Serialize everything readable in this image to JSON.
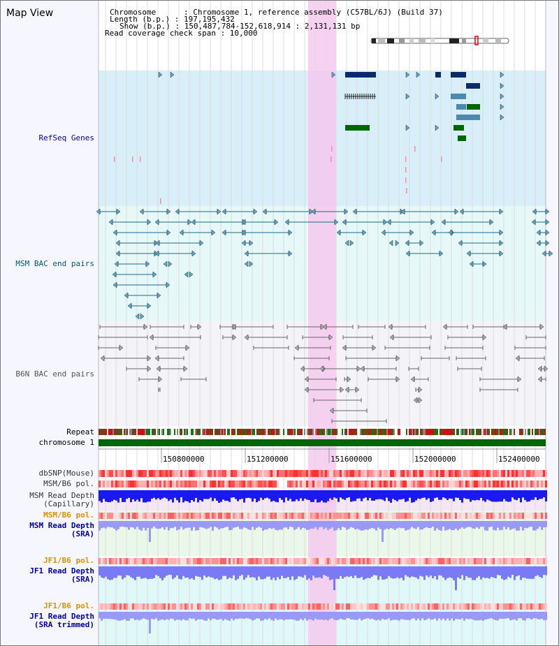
{
  "page": {
    "title": "Map View"
  },
  "header": {
    "chromosome_line": "Chromosome      : Chromosome 1, reference assembly (C57BL/6J) (Build 37)",
    "length_line": "Length (b.p.) : 197,195,432",
    "show_line": "Show (b.p.) : 150,487,784-152,618,914 : 2,131,131 bp",
    "coverage_line": "Read coverage check span : 10,000"
  },
  "tracks": {
    "refseq": {
      "label": "RefSeq Genes",
      "color": "#0000aa"
    },
    "msm_bac": {
      "label": "MSM BAC end pairs",
      "color": "#005a7a"
    },
    "b6n_bac": {
      "label": "B6N BAC end pairs",
      "color": "#555555"
    },
    "repeat": {
      "label": "Repeat"
    },
    "chromosome": {
      "label": "chromosome 1"
    },
    "dbsnp": {
      "label": "dbSNP(Mouse)"
    },
    "msm_b6_pol": {
      "label": "MSM/B6 pol."
    },
    "msm_depth_cap": {
      "label1": "MSM Read Depth",
      "label2": "(Capillary)"
    },
    "msm_b6_pol2": {
      "label": "MSM/B6 pol.",
      "color": "#e09000"
    },
    "msm_depth_sra": {
      "label1": "MSM Read Depth",
      "label2": "(SRA)"
    },
    "jf1_b6_pol": {
      "label": "JF1/B6 pol.",
      "color": "#e09000"
    },
    "jf1_depth_sra": {
      "label1": "JF1 Read Depth",
      "label2": "(SRA)"
    },
    "jf1_b6_pol2": {
      "label": "JF1/B6 pol.",
      "color": "#e09000"
    },
    "jf1_depth_trim": {
      "label1": "JF1 Read Depth",
      "label2": "(SRA trimmed)"
    }
  },
  "axis": {
    "ticks": [
      "150800000",
      "151200000",
      "151600000",
      "152000000",
      "152400000"
    ]
  }
}
